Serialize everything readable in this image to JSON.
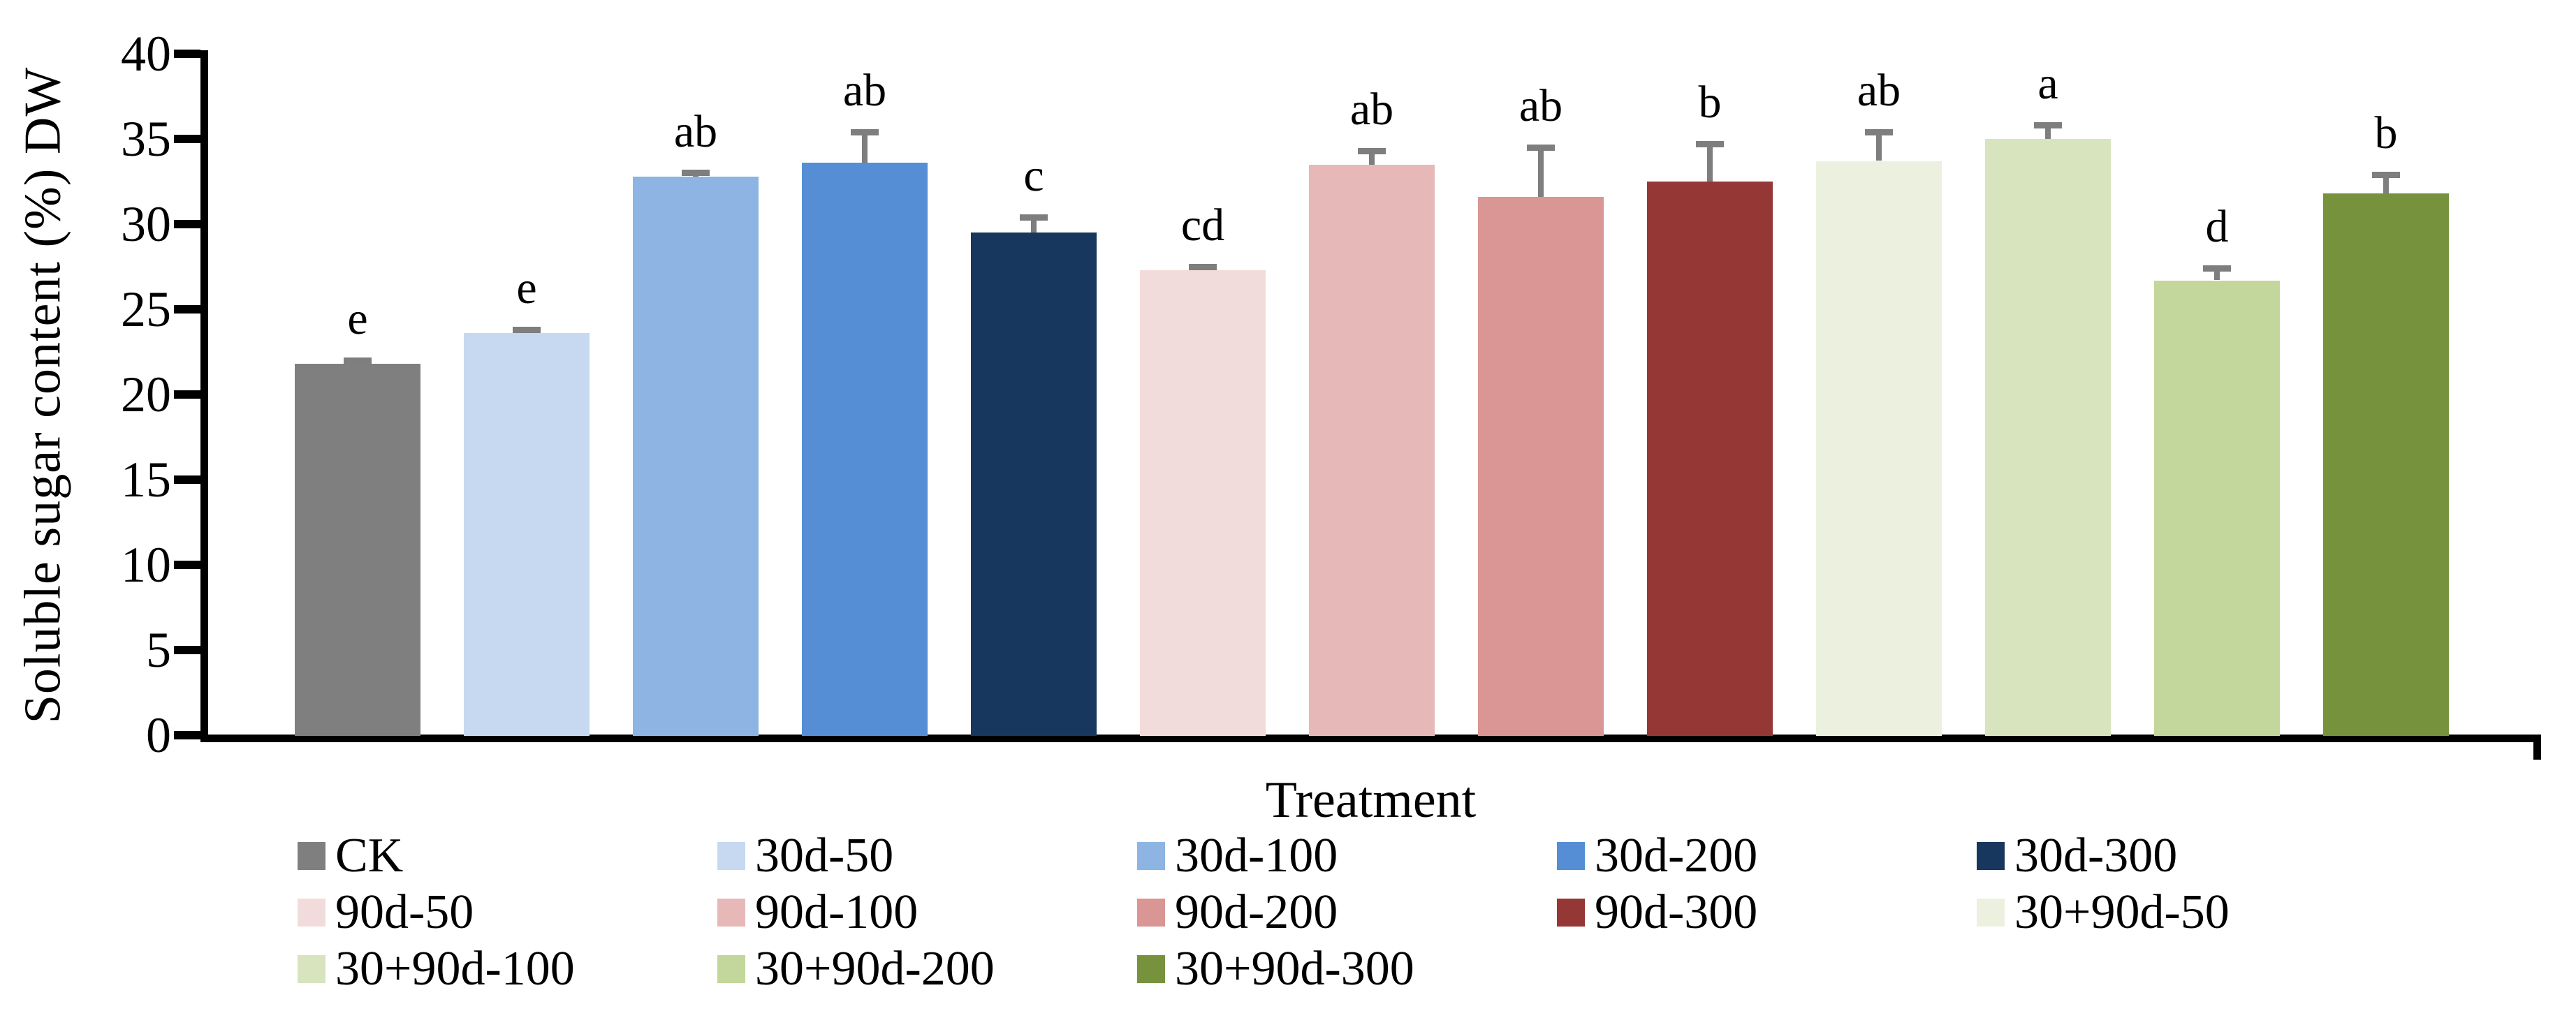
{
  "chart_data": {
    "type": "bar",
    "title": "",
    "xlabel": "Treatment",
    "ylabel": "Soluble sugar content (%) DW",
    "ylim": [
      0,
      40
    ],
    "ytick_step": 5,
    "ytick_labels": [
      "0",
      "5",
      "10",
      "15",
      "20",
      "25",
      "30",
      "35",
      "40"
    ],
    "grid": false,
    "legend_position": "bottom",
    "legend_rows": [
      5,
      5,
      3
    ],
    "error_bar_color": "#7e7e7e",
    "categories": [
      "CK",
      "30d-50",
      "30d-100",
      "30d-200",
      "30d-300",
      "90d-50",
      "90d-100",
      "90d-200",
      "90d-300",
      "30+90d-50",
      "30+90d-100",
      "30+90d-200",
      "30+90d-300"
    ],
    "values": [
      21.8,
      23.6,
      32.8,
      33.6,
      29.5,
      27.3,
      33.5,
      31.6,
      32.5,
      33.7,
      35.0,
      26.7,
      31.8
    ],
    "errors": [
      0.2,
      0.2,
      0.2,
      1.8,
      0.9,
      0.2,
      0.8,
      2.9,
      2.2,
      1.7,
      0.8,
      0.7,
      1.1
    ],
    "sig_letters": [
      "e",
      "e",
      "ab",
      "ab",
      "c",
      "cd",
      "ab",
      "ab",
      "b",
      "ab",
      "a",
      "d",
      "b"
    ],
    "bar_colors": [
      "#7F7F7F",
      "#C6D9F1",
      "#8DB4E2",
      "#558ED5",
      "#17375E",
      "#F2DCDB",
      "#E6B9B8",
      "#D99694",
      "#953735",
      "#EBF1DE",
      "#D7E4BD",
      "#C3D69B",
      "#76923C"
    ]
  }
}
